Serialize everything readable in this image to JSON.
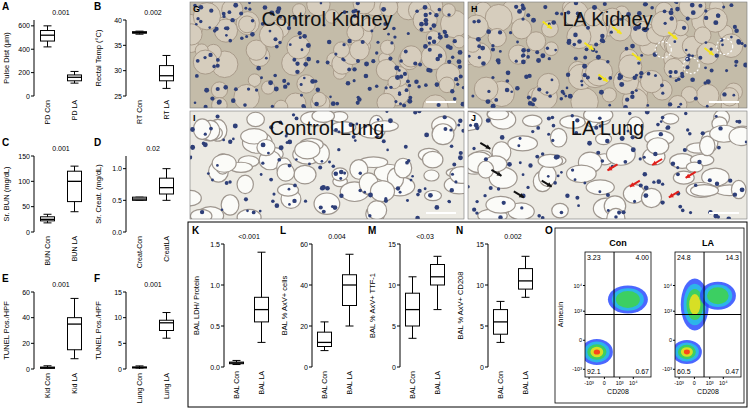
{
  "chart_data": [
    {
      "type": "box",
      "title": "A",
      "ylabel": "Pulse Dist (μm)",
      "categories": [
        "PD Con",
        "PD LA"
      ],
      "ylim": [
        0,
        650
      ],
      "yticks": [
        0,
        200,
        400,
        600
      ],
      "p_value": "0.001",
      "boxes": [
        {
          "min": 420,
          "q1": 470,
          "median": 520,
          "q3": 560,
          "max": 600
        },
        {
          "min": 110,
          "q1": 130,
          "median": 160,
          "q3": 180,
          "max": 210
        }
      ]
    },
    {
      "type": "box",
      "title": "B",
      "ylabel": "Rectal Temp (°C)",
      "categories": [
        "RT Con",
        "RT LA"
      ],
      "ylim": [
        25,
        40
      ],
      "yticks": [
        25,
        30,
        35,
        40
      ],
      "p_value": "0.002",
      "boxes": [
        {
          "min": 37.2,
          "q1": 37.4,
          "median": 37.5,
          "q3": 37.7,
          "max": 37.8
        },
        {
          "min": 26.5,
          "q1": 28,
          "median": 29,
          "q3": 31,
          "max": 33
        }
      ]
    },
    {
      "type": "box",
      "title": "C",
      "ylabel": "Sr. BUN (mg/dL)",
      "categories": [
        "BUN Con",
        "BUN LA"
      ],
      "ylim": [
        0,
        150
      ],
      "yticks": [
        0,
        50,
        100,
        150
      ],
      "p_value": "0.001",
      "boxes": [
        {
          "min": 18,
          "q1": 22,
          "median": 25,
          "q3": 30,
          "max": 35
        },
        {
          "min": 40,
          "q1": 60,
          "median": 100,
          "q3": 120,
          "max": 130
        }
      ]
    },
    {
      "type": "box",
      "title": "D",
      "ylabel": "Sr. Creat. (mg/dL)",
      "categories": [
        "Creat-Con",
        "CreatLA"
      ],
      "ylim": [
        0,
        1.2
      ],
      "yticks": [
        {
          "value": 0,
          "label": "0.0"
        },
        0.5,
        {
          "value": 1,
          "label": "1.0"
        }
      ],
      "p_value": "0.02",
      "boxes": [
        {
          "min": 0.5,
          "q1": 0.5,
          "median": 0.52,
          "q3": 0.55,
          "max": 0.55
        },
        {
          "min": 0.5,
          "q1": 0.6,
          "median": 0.7,
          "q3": 0.85,
          "max": 1.0
        }
      ]
    },
    {
      "type": "box",
      "title": "E",
      "ylabel": "TUNEL Pos./HPF",
      "categories": [
        "Kid Con",
        "Kid LA"
      ],
      "ylim": [
        0,
        60
      ],
      "yticks": [
        0,
        20,
        40,
        60
      ],
      "p_value": "0.001",
      "boxes": [
        {
          "min": 0,
          "q1": 0.5,
          "median": 1,
          "q3": 1.5,
          "max": 2.5
        },
        {
          "min": 8,
          "q1": 15,
          "median": 35,
          "q3": 40,
          "max": 55
        }
      ]
    },
    {
      "type": "box",
      "title": "F",
      "ylabel": "TUNEL Pos./HPF",
      "categories": [
        "Lung Con",
        "Lung LA"
      ],
      "ylim": [
        0,
        15
      ],
      "yticks": [
        0,
        5,
        10,
        15
      ],
      "p_value": "0.001",
      "boxes": [
        {
          "min": 0,
          "q1": 0.2,
          "median": 0.3,
          "q3": 0.4,
          "max": 0.6
        },
        {
          "min": 6,
          "q1": 7.5,
          "median": 9,
          "q3": 9.5,
          "max": 11
        }
      ]
    },
    {
      "type": "box",
      "title": "K",
      "ylabel": "BAL LDH/ Protein",
      "categories": [
        "BAL Con",
        "BAL LA"
      ],
      "ylim": [
        0,
        1.5
      ],
      "yticks": [
        {
          "value": 0,
          "label": "0.0"
        },
        0.5,
        {
          "value": 1,
          "label": "1.0"
        },
        1.5
      ],
      "p_value": "<0.001",
      "boxes": [
        {
          "min": 0.03,
          "q1": 0.04,
          "median": 0.05,
          "q3": 0.06,
          "max": 0.08
        },
        {
          "min": 0.3,
          "q1": 0.55,
          "median": 0.7,
          "q3": 0.85,
          "max": 1.4
        }
      ]
    },
    {
      "type": "box",
      "title": "L",
      "ylabel": "BAL % AxV+ cells",
      "categories": [
        "BAL Con",
        "BAL LA"
      ],
      "ylim": [
        0,
        60
      ],
      "yticks": [
        0,
        20,
        40,
        60
      ],
      "p_value": "0.004",
      "boxes": [
        {
          "min": 8,
          "q1": 10,
          "median": 12,
          "q3": 17,
          "max": 22
        },
        {
          "min": 20,
          "q1": 30,
          "median": 40,
          "q3": 45,
          "max": 55
        }
      ]
    },
    {
      "type": "box",
      "title": "M",
      "ylabel": "BAL % AxV+ TTF-1",
      "categories": [
        "BAL Con",
        "BAL LA"
      ],
      "ylim": [
        0,
        15
      ],
      "yticks": [
        0,
        5,
        10,
        15
      ],
      "p_value": "<0.03",
      "boxes": [
        {
          "min": 3.5,
          "q1": 5,
          "median": 7,
          "q3": 9,
          "max": 11
        },
        {
          "min": 7,
          "q1": 10,
          "median": 11,
          "q3": 12.5,
          "max": 13.5
        }
      ]
    },
    {
      "type": "box",
      "title": "N",
      "ylabel": "BAL % AxV+ CD208",
      "categories": [
        "BAL Con",
        "BAL LA"
      ],
      "ylim": [
        0,
        15
      ],
      "yticks": [
        0,
        5,
        10,
        15
      ],
      "p_value": "0.002",
      "boxes": [
        {
          "min": 3,
          "q1": 4,
          "median": 5.5,
          "q3": 7,
          "max": 8
        },
        {
          "min": 8.5,
          "q1": 9.5,
          "median": 10.5,
          "q3": 12,
          "max": 13.5
        }
      ]
    },
    {
      "type": "flow",
      "title": "O",
      "xlabel": "CD208",
      "ylabel": "Annexin",
      "xlim": [
        -2000,
        200000
      ],
      "ylim": [
        -2000,
        200000
      ],
      "xticks": [
        {
          "value": -1000,
          "label": "-10³"
        },
        0,
        {
          "value": 1000,
          "label": "10³"
        },
        {
          "value": 10000,
          "label": "10⁴"
        }
      ],
      "yticks": [
        {
          "value": -1000,
          "label": "-10³"
        },
        0,
        {
          "value": 1000,
          "label": "10³"
        },
        {
          "value": 10000,
          "label": "10⁴"
        }
      ],
      "panels": [
        {
          "title": "Con",
          "values": [
            3.23,
            4.0,
            92.1,
            0.67
          ],
          "value_labels": [
            "3.23",
            "4.00",
            "92.1",
            "0.67"
          ]
        },
        {
          "title": "LA",
          "values": [
            24.8,
            14.3,
            60.5,
            0.47
          ],
          "value_labels": [
            "24.8",
            "14.3",
            "60.5",
            "0.47"
          ]
        }
      ]
    }
  ],
  "images": [
    {
      "title": "G",
      "label": "Control Kidney"
    },
    {
      "title": "H",
      "label": "LA Kidney"
    },
    {
      "title": "I",
      "label": "Control Lung"
    },
    {
      "title": "J",
      "label": "LA Lung"
    }
  ]
}
